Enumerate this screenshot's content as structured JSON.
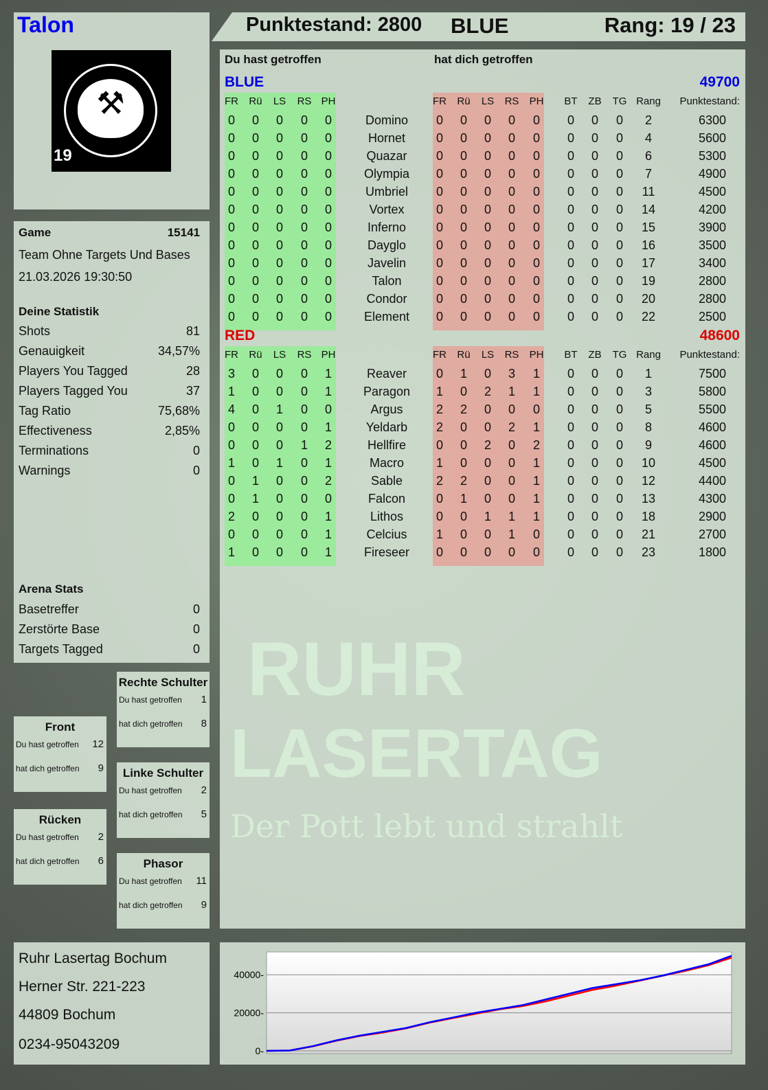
{
  "player": {
    "name": "Talon",
    "logo_text": "RUHR LASERTAG",
    "badge_number": "19"
  },
  "header": {
    "score_label": "Punktestand: 2800",
    "team": "BLUE",
    "rank_label": "Rang: 19 / 23"
  },
  "main": {
    "you_hit_label": "Du hast getroffen",
    "hit_you_label": "hat dich getroffen",
    "columns": [
      "FR",
      "Rü",
      "LS",
      "RS",
      "PH"
    ],
    "extra_columns": [
      "BT",
      "ZB",
      "TG",
      "Rang",
      "Punktestand:"
    ],
    "teams": [
      {
        "name": "BLUE",
        "total": "49700",
        "color": "#0000dd",
        "players": [
          [
            "Domino",
            [
              0,
              0,
              0,
              0,
              0
            ],
            [
              0,
              0,
              0,
              0,
              0
            ],
            [
              0,
              0,
              0
            ],
            2,
            6300
          ],
          [
            "Hornet",
            [
              0,
              0,
              0,
              0,
              0
            ],
            [
              0,
              0,
              0,
              0,
              0
            ],
            [
              0,
              0,
              0
            ],
            4,
            5600
          ],
          [
            "Quazar",
            [
              0,
              0,
              0,
              0,
              0
            ],
            [
              0,
              0,
              0,
              0,
              0
            ],
            [
              0,
              0,
              0
            ],
            6,
            5300
          ],
          [
            "Olympia",
            [
              0,
              0,
              0,
              0,
              0
            ],
            [
              0,
              0,
              0,
              0,
              0
            ],
            [
              0,
              0,
              0
            ],
            7,
            4900
          ],
          [
            "Umbriel",
            [
              0,
              0,
              0,
              0,
              0
            ],
            [
              0,
              0,
              0,
              0,
              0
            ],
            [
              0,
              0,
              0
            ],
            11,
            4500
          ],
          [
            "Vortex",
            [
              0,
              0,
              0,
              0,
              0
            ],
            [
              0,
              0,
              0,
              0,
              0
            ],
            [
              0,
              0,
              0
            ],
            14,
            4200
          ],
          [
            "Inferno",
            [
              0,
              0,
              0,
              0,
              0
            ],
            [
              0,
              0,
              0,
              0,
              0
            ],
            [
              0,
              0,
              0
            ],
            15,
            3900
          ],
          [
            "Dayglo",
            [
              0,
              0,
              0,
              0,
              0
            ],
            [
              0,
              0,
              0,
              0,
              0
            ],
            [
              0,
              0,
              0
            ],
            16,
            3500
          ],
          [
            "Javelin",
            [
              0,
              0,
              0,
              0,
              0
            ],
            [
              0,
              0,
              0,
              0,
              0
            ],
            [
              0,
              0,
              0
            ],
            17,
            3400
          ],
          [
            "Talon",
            [
              0,
              0,
              0,
              0,
              0
            ],
            [
              0,
              0,
              0,
              0,
              0
            ],
            [
              0,
              0,
              0
            ],
            19,
            2800
          ],
          [
            "Condor",
            [
              0,
              0,
              0,
              0,
              0
            ],
            [
              0,
              0,
              0,
              0,
              0
            ],
            [
              0,
              0,
              0
            ],
            20,
            2800
          ],
          [
            "Element",
            [
              0,
              0,
              0,
              0,
              0
            ],
            [
              0,
              0,
              0,
              0,
              0
            ],
            [
              0,
              0,
              0
            ],
            22,
            2500
          ]
        ]
      },
      {
        "name": "RED",
        "total": "48600",
        "color": "#dd0000",
        "players": [
          [
            "Reaver",
            [
              3,
              0,
              0,
              0,
              1
            ],
            [
              0,
              1,
              0,
              3,
              1
            ],
            [
              0,
              0,
              0
            ],
            1,
            7500
          ],
          [
            "Paragon",
            [
              1,
              0,
              0,
              0,
              1
            ],
            [
              1,
              0,
              2,
              1,
              1
            ],
            [
              0,
              0,
              0
            ],
            3,
            5800
          ],
          [
            "Argus",
            [
              4,
              0,
              1,
              0,
              0
            ],
            [
              2,
              2,
              0,
              0,
              0
            ],
            [
              0,
              0,
              0
            ],
            5,
            5500
          ],
          [
            "Yeldarb",
            [
              0,
              0,
              0,
              0,
              1
            ],
            [
              2,
              0,
              0,
              2,
              1
            ],
            [
              0,
              0,
              0
            ],
            8,
            4600
          ],
          [
            "Hellfire",
            [
              0,
              0,
              0,
              1,
              2
            ],
            [
              0,
              0,
              2,
              0,
              2
            ],
            [
              0,
              0,
              0
            ],
            9,
            4600
          ],
          [
            "Macro",
            [
              1,
              0,
              1,
              0,
              1
            ],
            [
              1,
              0,
              0,
              0,
              1
            ],
            [
              0,
              0,
              0
            ],
            10,
            4500
          ],
          [
            "Sable",
            [
              0,
              1,
              0,
              0,
              2
            ],
            [
              2,
              2,
              0,
              0,
              1
            ],
            [
              0,
              0,
              0
            ],
            12,
            4400
          ],
          [
            "Falcon",
            [
              0,
              1,
              0,
              0,
              0
            ],
            [
              0,
              1,
              0,
              0,
              1
            ],
            [
              0,
              0,
              0
            ],
            13,
            4300
          ],
          [
            "Lithos",
            [
              2,
              0,
              0,
              0,
              1
            ],
            [
              0,
              0,
              1,
              1,
              1
            ],
            [
              0,
              0,
              0
            ],
            18,
            2900
          ],
          [
            "Celcius",
            [
              0,
              0,
              0,
              0,
              1
            ],
            [
              1,
              0,
              0,
              1,
              0
            ],
            [
              0,
              0,
              0
            ],
            21,
            2700
          ],
          [
            "Fireseer",
            [
              1,
              0,
              0,
              0,
              1
            ],
            [
              0,
              0,
              0,
              0,
              0
            ],
            [
              0,
              0,
              0
            ],
            23,
            1800
          ]
        ]
      }
    ]
  },
  "game": {
    "label": "Game",
    "id": "15141",
    "mode": "Team Ohne Targets Und Bases",
    "datetime": "21.03.2026 19:30:50"
  },
  "stats": {
    "title": "Deine Statistik",
    "items": [
      [
        "Shots",
        "81"
      ],
      [
        "Genauigkeit",
        "34,57%"
      ],
      [
        "Players You Tagged",
        "28"
      ],
      [
        "Players Tagged You",
        "37"
      ],
      [
        "Tag Ratio",
        "75,68%"
      ],
      [
        "Effectiveness",
        "2,85%"
      ],
      [
        "Terminations",
        "0"
      ],
      [
        "Warnings",
        "0"
      ]
    ]
  },
  "arena": {
    "title": "Arena Stats",
    "items": [
      [
        "Basetreffer",
        "0"
      ],
      [
        "Zerstörte Base",
        "0"
      ],
      [
        "Targets Tagged",
        "0"
      ]
    ]
  },
  "zones": {
    "you_hit": "Du hast getroffen",
    "hit_you": "hat dich getroffen",
    "items": [
      {
        "name": "Rechte Schulter",
        "you": "1",
        "them": "8"
      },
      {
        "name": "Front",
        "you": "12",
        "them": "9"
      },
      {
        "name": "Linke Schulter",
        "you": "2",
        "them": "5"
      },
      {
        "name": "Rücken",
        "you": "2",
        "them": "6"
      },
      {
        "name": "Phasor",
        "you": "11",
        "them": "9"
      }
    ]
  },
  "footer": {
    "lines": [
      "Ruhr Lasertag Bochum",
      "Herner Str. 221-223",
      "44809 Bochum",
      "0234-95043209"
    ]
  },
  "watermark": {
    "line1": "RUHR",
    "line2": "LASERTAG",
    "slogan": "Der Pott lebt und strahlt"
  },
  "chart_data": {
    "type": "line",
    "ylim": [
      0,
      52000
    ],
    "yticks": [
      0,
      20000,
      40000
    ],
    "grid": true,
    "x": [
      0,
      1,
      2,
      3,
      4,
      5,
      6,
      7,
      8,
      9,
      10,
      11,
      12,
      13,
      14,
      15,
      16,
      17,
      18,
      19,
      20
    ],
    "series": [
      {
        "color": "#0000ff",
        "values": [
          0,
          200,
          2500,
          5500,
          8000,
          10000,
          12000,
          15000,
          17500,
          20000,
          22000,
          24000,
          27000,
          30000,
          33000,
          35000,
          37000,
          39500,
          42500,
          45500,
          50000
        ]
      },
      {
        "color": "#ff0000",
        "values": [
          0,
          200,
          2400,
          5300,
          7800,
          9600,
          11800,
          14800,
          17200,
          19500,
          21800,
          23500,
          26000,
          29000,
          32000,
          34200,
          36800,
          39400,
          42000,
          45000,
          49000
        ]
      }
    ]
  }
}
